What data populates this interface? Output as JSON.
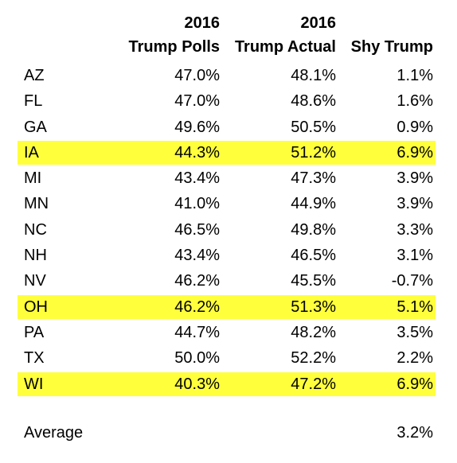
{
  "headers": {
    "col1": {
      "line1": "2016",
      "line2": "Trump Polls"
    },
    "col2": {
      "line1": "2016",
      "line2": "Trump Actual"
    },
    "col3": {
      "line1": "",
      "line2": "Shy Trump"
    }
  },
  "highlight_color": "#ffff3c",
  "rows": [
    {
      "state": "AZ",
      "polls": "47.0%",
      "actual": "48.1%",
      "shy": "1.1%",
      "highlighted": false
    },
    {
      "state": "FL",
      "polls": "47.0%",
      "actual": "48.6%",
      "shy": "1.6%",
      "highlighted": false
    },
    {
      "state": "GA",
      "polls": "49.6%",
      "actual": "50.5%",
      "shy": "0.9%",
      "highlighted": false
    },
    {
      "state": "IA",
      "polls": "44.3%",
      "actual": "51.2%",
      "shy": "6.9%",
      "highlighted": true
    },
    {
      "state": "MI",
      "polls": "43.4%",
      "actual": "47.3%",
      "shy": "3.9%",
      "highlighted": false
    },
    {
      "state": "MN",
      "polls": "41.0%",
      "actual": "44.9%",
      "shy": "3.9%",
      "highlighted": false
    },
    {
      "state": "NC",
      "polls": "46.5%",
      "actual": "49.8%",
      "shy": "3.3%",
      "highlighted": false
    },
    {
      "state": "NH",
      "polls": "43.4%",
      "actual": "46.5%",
      "shy": "3.1%",
      "highlighted": false
    },
    {
      "state": "NV",
      "polls": "46.2%",
      "actual": "45.5%",
      "shy": "-0.7%",
      "highlighted": false
    },
    {
      "state": "OH",
      "polls": "46.2%",
      "actual": "51.3%",
      "shy": "5.1%",
      "highlighted": true
    },
    {
      "state": "PA",
      "polls": "44.7%",
      "actual": "48.2%",
      "shy": "3.5%",
      "highlighted": false
    },
    {
      "state": "TX",
      "polls": "50.0%",
      "actual": "52.2%",
      "shy": "2.2%",
      "highlighted": false
    },
    {
      "state": "WI",
      "polls": "40.3%",
      "actual": "47.2%",
      "shy": "6.9%",
      "highlighted": true
    }
  ],
  "average": {
    "label": "Average",
    "value": "3.2%"
  }
}
